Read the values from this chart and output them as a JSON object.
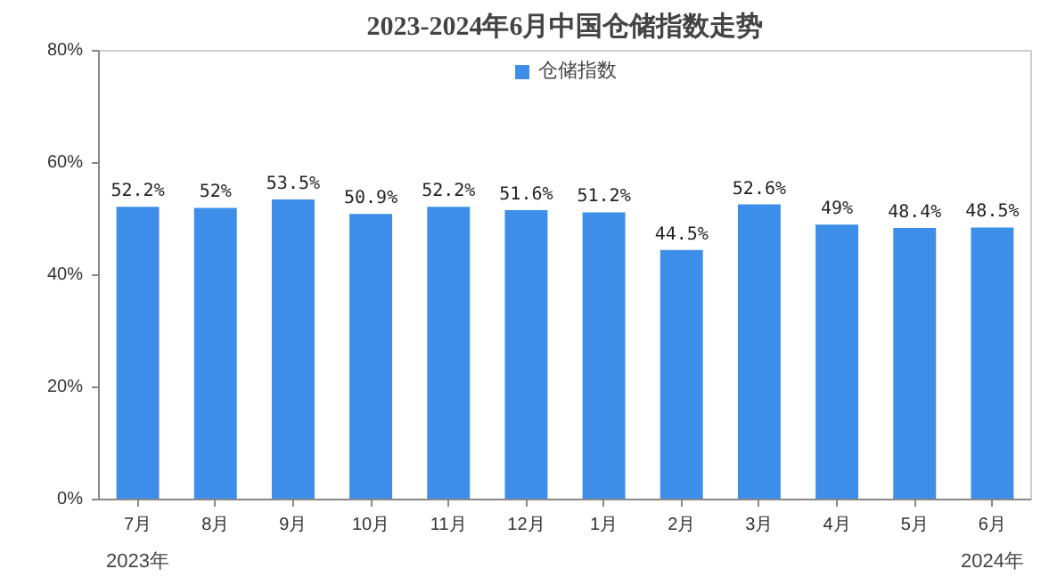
{
  "chart_data": {
    "type": "bar",
    "title": "2023-2024年6月中国仓储指数走势",
    "categories": [
      "7月",
      "8月",
      "9月",
      "10月",
      "11月",
      "12月",
      "1月",
      "2月",
      "3月",
      "4月",
      "5月",
      "6月"
    ],
    "series": [
      {
        "name": "仓储指数",
        "color": "#3d8ee8",
        "values": [
          52.2,
          52,
          53.5,
          50.9,
          52.2,
          51.6,
          51.2,
          44.5,
          52.6,
          49,
          48.4,
          48.5
        ],
        "value_labels": [
          "52.2%",
          "52%",
          "53.5%",
          "50.9%",
          "52.2%",
          "51.6%",
          "51.2%",
          "44.5%",
          "52.6%",
          "49%",
          "48.4%",
          "48.5%"
        ]
      }
    ],
    "ylim": [
      0,
      80
    ],
    "yticks": [
      {
        "value": 0,
        "label": "0%"
      },
      {
        "value": 20,
        "label": "20%"
      },
      {
        "value": 40,
        "label": "40%"
      },
      {
        "value": 60,
        "label": "60%"
      },
      {
        "value": 80,
        "label": "80%"
      }
    ],
    "annotations": [
      "2023年",
      "2024年"
    ],
    "legend": "top",
    "grid": false
  }
}
